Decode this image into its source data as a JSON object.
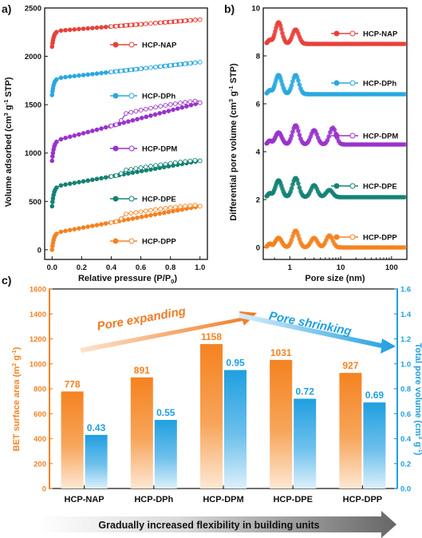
{
  "chart_data": [
    {
      "panel_label": "a)",
      "type": "line",
      "xlabel": "Relative pressure (P/P",
      "xlabel_sub": "0",
      "xlabel_end": ")",
      "ylabel": "Volume adsorbed (cm",
      "ylabel_sup": "3",
      "ylabel_mid": " g",
      "ylabel_sup2": "-1",
      "ylabel_end": " STP)",
      "xlim": [
        -0.05,
        1.05
      ],
      "ylim": [
        -100,
        2500
      ],
      "xticks": [
        "0.0",
        "0.2",
        "0.4",
        "0.6",
        "0.8",
        "1.0"
      ],
      "yticks": [
        "0",
        "500",
        "1000",
        "1500",
        "2000",
        "2500"
      ],
      "legend_position": "right, beside each curve",
      "series": [
        {
          "name": "HCP-NAP",
          "color": "#e8413a",
          "base": 2100,
          "jump": 160,
          "slope": 120,
          "hyst": 0
        },
        {
          "name": "HCP-DPh",
          "color": "#2aa8e0",
          "base": 1600,
          "jump": 170,
          "slope": 170,
          "hyst": 0
        },
        {
          "name": "HCP-DPM",
          "color": "#9933cc",
          "base": 920,
          "jump": 200,
          "slope": 400,
          "hyst": 90
        },
        {
          "name": "HCP-DPE",
          "color": "#138274",
          "base": 450,
          "jump": 200,
          "slope": 270,
          "hyst": 40
        },
        {
          "name": "HCP-DPP",
          "color": "#f58220",
          "base": 0,
          "jump": 170,
          "slope": 280,
          "hyst": 60
        }
      ]
    },
    {
      "panel_label": "b)",
      "type": "line",
      "xlabel": "Pore size (nm)",
      "ylabel": "Differential pore volume (cm",
      "ylabel_sup": "3",
      "ylabel_mid": " g",
      "ylabel_sup2": "-1",
      "ylabel_end": " STP)",
      "xscale": "log",
      "xlim": [
        0.3,
        200
      ],
      "ylim": [
        -0.5,
        10
      ],
      "xticks": [
        "1",
        "10",
        "100"
      ],
      "yticks": [
        "0",
        "2",
        "4",
        "6",
        "8",
        "10"
      ],
      "legend_position": "right, beside each curve",
      "series": [
        {
          "name": "HCP-NAP",
          "color": "#e8413a",
          "baseline": 8.5,
          "peaks": [
            [
              0.6,
              0.9
            ],
            [
              1.3,
              0.6
            ]
          ]
        },
        {
          "name": "HCP-DPh",
          "color": "#2aa8e0",
          "baseline": 6.4,
          "peaks": [
            [
              0.6,
              0.8
            ],
            [
              1.3,
              0.8
            ]
          ]
        },
        {
          "name": "HCP-DPM",
          "color": "#9933cc",
          "baseline": 4.3,
          "peaks": [
            [
              0.6,
              0.5
            ],
            [
              1.3,
              0.8
            ],
            [
              3.0,
              0.6
            ],
            [
              7.0,
              0.7
            ]
          ]
        },
        {
          "name": "HCP-DPE",
          "color": "#138274",
          "baseline": 2.1,
          "peaks": [
            [
              0.6,
              0.7
            ],
            [
              1.3,
              0.8
            ],
            [
              3.0,
              0.5
            ],
            [
              6.0,
              0.3
            ]
          ]
        },
        {
          "name": "HCP-DPP",
          "color": "#f58220",
          "baseline": 0.0,
          "peaks": [
            [
              0.6,
              0.4
            ],
            [
              1.3,
              0.7
            ],
            [
              3.0,
              0.4
            ],
            [
              6.0,
              0.5
            ]
          ]
        }
      ]
    },
    {
      "panel_label": "c)",
      "type": "bar",
      "categories": [
        "HCP-NAP",
        "HCP-DPh",
        "HCP-DPM",
        "HCP-DPE",
        "HCP-DPP"
      ],
      "series": [
        {
          "name": "BET surface area",
          "axis": "left",
          "color": "#f58220",
          "values": [
            778,
            891,
            1158,
            1031,
            927
          ],
          "labels": [
            "778",
            "891",
            "1158",
            "1031",
            "927"
          ]
        },
        {
          "name": "Total pore volume",
          "axis": "right",
          "color": "#1f9fe0",
          "values": [
            0.43,
            0.55,
            0.95,
            0.72,
            0.69
          ],
          "labels": [
            "0.43",
            "0.55",
            "0.95",
            "0.72",
            "0.69"
          ]
        }
      ],
      "ylabel_left": "BET surface area (m",
      "ylabel_left_sup": "2",
      "ylabel_left_mid": " g",
      "ylabel_left_sup2": "-1",
      "ylabel_left_end": ")",
      "ylabel_right": "Total pore volume (cm",
      "ylabel_right_sup": "3",
      "ylabel_right_mid": " g",
      "ylabel_right_sup2": "-1",
      "ylabel_right_end": ")",
      "ylim_left": [
        0,
        1600
      ],
      "ylim_right": [
        0,
        1.6
      ],
      "yticks_left": [
        "0",
        "200",
        "400",
        "600",
        "800",
        "1000",
        "1200",
        "1400",
        "1600"
      ],
      "yticks_right": [
        "0.0",
        "0.2",
        "0.4",
        "0.6",
        "0.8",
        "1.0",
        "1.2",
        "1.4",
        "1.6"
      ],
      "annotations": {
        "left_arrow": "Pore expanding",
        "right_arrow": "Pore shrinking"
      },
      "footer": "Gradually increased flexibility in building units"
    }
  ]
}
